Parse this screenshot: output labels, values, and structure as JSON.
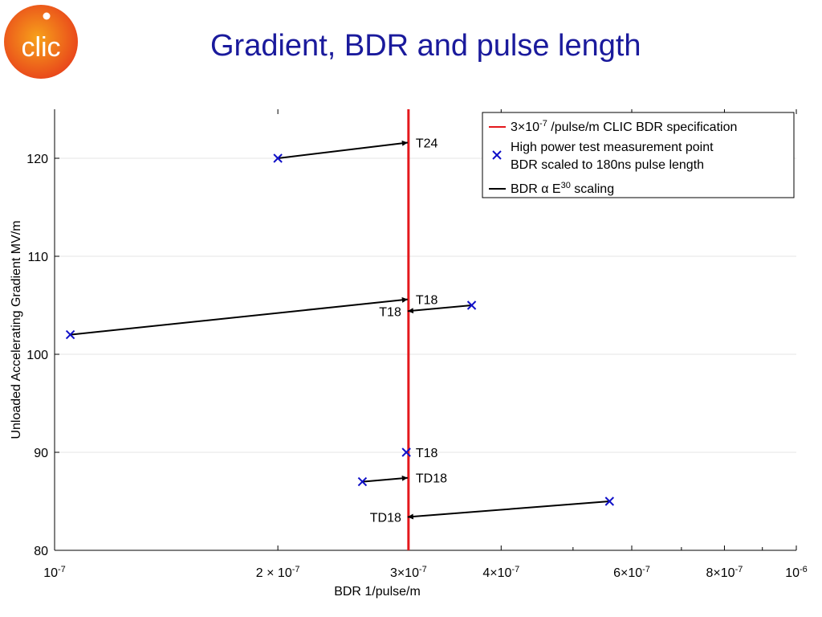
{
  "slide": {
    "title": "Gradient, BDR and pulse length",
    "logo_text": "clic"
  },
  "colors": {
    "title": "#1a1a9c",
    "spec_line": "#e4181c",
    "measurement": "#1010c8",
    "scaling": "#000000",
    "logo_outer": "#e8421b",
    "logo_inner": "#f7a21b"
  },
  "chart_data": {
    "type": "scatter",
    "xlabel": "BDR 1/pulse/m",
    "ylabel": "Unloaded Accelerating Gradient MV/m",
    "xscale": "log",
    "xlim": [
      1e-07,
      1e-06
    ],
    "ylim": [
      80,
      125
    ],
    "grid": true,
    "legend_position": "top-right",
    "x_ticks": [
      {
        "value": 1e-07,
        "label": "10",
        "sup": "-7"
      },
      {
        "value": 2e-07,
        "label": "2 × 10",
        "sup": "-7"
      },
      {
        "value": 3e-07,
        "label": "3×10",
        "sup": "-7"
      },
      {
        "value": 4e-07,
        "label": "4×10",
        "sup": "-7"
      },
      {
        "value": 6e-07,
        "label": "6×10",
        "sup": "-7"
      },
      {
        "value": 8e-07,
        "label": "8×10",
        "sup": "-7"
      },
      {
        "value": 1e-06,
        "label": "10",
        "sup": "-6"
      }
    ],
    "y_ticks": [
      80,
      90,
      100,
      110,
      120
    ],
    "spec_line": {
      "x": 3e-07
    },
    "legend": [
      {
        "kind": "line",
        "text": "3×10",
        "sup": "-7",
        "text2": " /pulse/m CLIC BDR specification"
      },
      {
        "kind": "marker",
        "text": "High power test measurement point"
      },
      {
        "kind": "none",
        "text": "BDR scaled to 180ns pulse length"
      },
      {
        "kind": "arrow",
        "text": "BDR α E",
        "sup": "30",
        "text2": " scaling"
      }
    ],
    "series": [
      {
        "name": "High power test measurement point BDR scaled to 180ns pulse length",
        "points": [
          {
            "x": 2e-07,
            "y": 120
          },
          {
            "x": 1.05e-07,
            "y": 102
          },
          {
            "x": 3.65e-07,
            "y": 105
          },
          {
            "x": 2.98e-07,
            "y": 90
          },
          {
            "x": 2.6e-07,
            "y": 87
          },
          {
            "x": 5.6e-07,
            "y": 85
          }
        ]
      }
    ],
    "scaling_arrows": [
      {
        "from": [
          2e-07,
          120
        ],
        "to": [
          3e-07,
          121.6
        ]
      },
      {
        "from": [
          1.05e-07,
          102
        ],
        "to": [
          3e-07,
          105.6
        ]
      },
      {
        "from": [
          3.65e-07,
          105
        ],
        "to": [
          3e-07,
          104.4
        ]
      },
      {
        "from": [
          2.6e-07,
          87
        ],
        "to": [
          3e-07,
          87.4
        ]
      },
      {
        "from": [
          5.6e-07,
          85
        ],
        "to": [
          3e-07,
          83.4
        ]
      }
    ],
    "annotations": [
      {
        "text": "T24",
        "x": 3e-07,
        "y": 121.6,
        "anchor": "right"
      },
      {
        "text": "T18",
        "x": 3e-07,
        "y": 105.6,
        "anchor": "right"
      },
      {
        "text": "T18",
        "x": 3e-07,
        "y": 104.4,
        "anchor": "left"
      },
      {
        "text": "T18",
        "x": 3e-07,
        "y": 90,
        "anchor": "right"
      },
      {
        "text": "TD18",
        "x": 3e-07,
        "y": 87.4,
        "anchor": "right"
      },
      {
        "text": "TD18",
        "x": 3e-07,
        "y": 83.4,
        "anchor": "left"
      }
    ]
  }
}
